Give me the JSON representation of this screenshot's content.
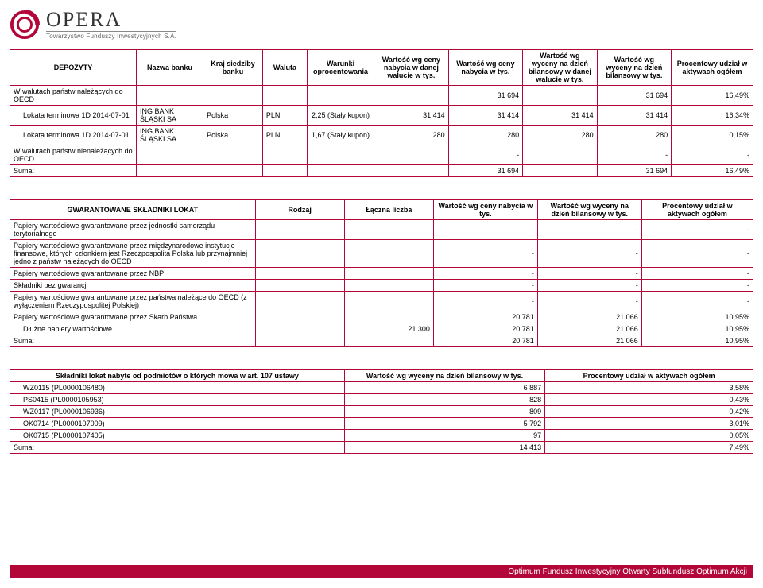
{
  "logo": {
    "text": "OPERA",
    "sub": "Towarzystwo Funduszy Inwestycyjnych S.A."
  },
  "footer": "Optimum Fundusz Inwestycyjny Otwarty Subfundusz Optimum Akcji",
  "colors": {
    "border": "#b20738",
    "footer_bg": "#b20738",
    "footer_fg": "#ffffff"
  },
  "table1": {
    "headers": [
      "DEPOZYTY",
      "Nazwa banku",
      "Kraj siedziby banku",
      "Waluta",
      "Warunki oprocentowania",
      "Wartość wg ceny nabycia w danej walucie w tys.",
      "Wartość wg ceny nabycia w tys.",
      "Wartość wg wyceny na dzień bilansowy w danej walucie w tys.",
      "Wartość wg wyceny na dzień bilansowy w tys.",
      "Procentowy udział w aktywach ogółem"
    ],
    "rows": [
      {
        "c0": "W walutach państw należących do OECD",
        "c1": "",
        "c2": "",
        "c3": "",
        "c4": "",
        "c5": "",
        "c6": "31 694",
        "c7": "",
        "c8": "31 694",
        "c9": "16,49%"
      },
      {
        "c0": "Lokata terminowa 1D 2014-07-01",
        "c1": "ING BANK ŚLĄSKI SA",
        "c2": "Polska",
        "c3": "PLN",
        "c4": "2,25 (Stały kupon)",
        "c5": "31 414",
        "c6": "31 414",
        "c7": "31 414",
        "c8": "31 414",
        "c9": "16,34%",
        "indent": true
      },
      {
        "c0": "Lokata terminowa 1D 2014-07-01",
        "c1": "ING BANK ŚLĄSKI SA",
        "c2": "Polska",
        "c3": "PLN",
        "c4": "1,67 (Stały kupon)",
        "c5": "280",
        "c6": "280",
        "c7": "280",
        "c8": "280",
        "c9": "0,15%",
        "indent": true
      },
      {
        "c0": "W walutach państw nienależących do OECD",
        "c1": "",
        "c2": "",
        "c3": "",
        "c4": "",
        "c5": "",
        "c6": "-",
        "c7": "",
        "c8": "-",
        "c9": "-"
      },
      {
        "c0": "Suma:",
        "c1": "",
        "c2": "",
        "c3": "",
        "c4": "",
        "c5": "",
        "c6": "31 694",
        "c7": "",
        "c8": "31 694",
        "c9": "16,49%"
      }
    ],
    "widths": [
      "17%",
      "9%",
      "8%",
      "6%",
      "9%",
      "10%",
      "10%",
      "10%",
      "10%",
      "11%"
    ]
  },
  "table2": {
    "headers": [
      "GWARANTOWANE SKŁADNIKI LOKAT",
      "Rodzaj",
      "Łączna liczba",
      "Wartość wg ceny nabycia w tys.",
      "Wartość wg wyceny na dzień bilansowy w tys.",
      "Procentowy udział w aktywach ogółem"
    ],
    "rows": [
      {
        "c0": "Papiery wartościowe gwarantowane przez jednostki samorządu terytorialnego",
        "c1": "",
        "c2": "",
        "c3": "-",
        "c4": "-",
        "c5": "-"
      },
      {
        "c0": "Papiery wartościowe gwarantowane przez międzynarodowe instytucje finansowe, których członkiem jest Rzeczpospolita Polska lub przynajmniej jedno z państw należących do OECD",
        "c1": "",
        "c2": "",
        "c3": "-",
        "c4": "-",
        "c5": "-"
      },
      {
        "c0": "Papiery wartościowe gwarantowane przez NBP",
        "c1": "",
        "c2": "",
        "c3": "-",
        "c4": "-",
        "c5": "-"
      },
      {
        "c0": "Składniki bez gwarancji",
        "c1": "",
        "c2": "",
        "c3": "-",
        "c4": "-",
        "c5": "-"
      },
      {
        "c0": "Papiery wartościowe gwarantowane przez państwa należące do OECD (z wyłączeniem Rzeczypospolitej Polskiej)",
        "c1": "",
        "c2": "",
        "c3": "-",
        "c4": "-",
        "c5": "-"
      },
      {
        "c0": "Papiery wartościowe gwarantowane przez Skarb Państwa",
        "c1": "",
        "c2": "",
        "c3": "20 781",
        "c4": "21 066",
        "c5": "10,95%"
      },
      {
        "c0": "Dłużne papiery wartościowe",
        "c1": "",
        "c2": "21 300",
        "c3": "20 781",
        "c4": "21 066",
        "c5": "10,95%",
        "indent": true
      },
      {
        "c0": "Suma:",
        "c1": "",
        "c2": "",
        "c3": "20 781",
        "c4": "21 066",
        "c5": "10,95%"
      }
    ],
    "widths": [
      "33%",
      "12%",
      "12%",
      "14%",
      "14%",
      "15%"
    ]
  },
  "table3": {
    "headers": [
      "Składniki lokat nabyte od podmiotów o których mowa w art. 107 ustawy",
      "Wartość wg wyceny na dzień bilansowy w tys.",
      "Procentowy udział w aktywach ogółem"
    ],
    "rows": [
      {
        "c0": "WZ0115 (PL0000106480)",
        "c1": "6 887",
        "c2": "3,58%",
        "indent": true
      },
      {
        "c0": "PS0415 (PL0000105953)",
        "c1": "828",
        "c2": "0,43%",
        "indent": true
      },
      {
        "c0": "WZ0117 (PL0000106936)",
        "c1": "809",
        "c2": "0,42%",
        "indent": true
      },
      {
        "c0": "OK0714 (PL0000107009)",
        "c1": "5 792",
        "c2": "3,01%",
        "indent": true
      },
      {
        "c0": "OK0715 (PL0000107405)",
        "c1": "97",
        "c2": "0,05%",
        "indent": true
      },
      {
        "c0": "Suma:",
        "c1": "14 413",
        "c2": "7,49%"
      }
    ],
    "widths": [
      "45%",
      "27%",
      "28%"
    ]
  }
}
